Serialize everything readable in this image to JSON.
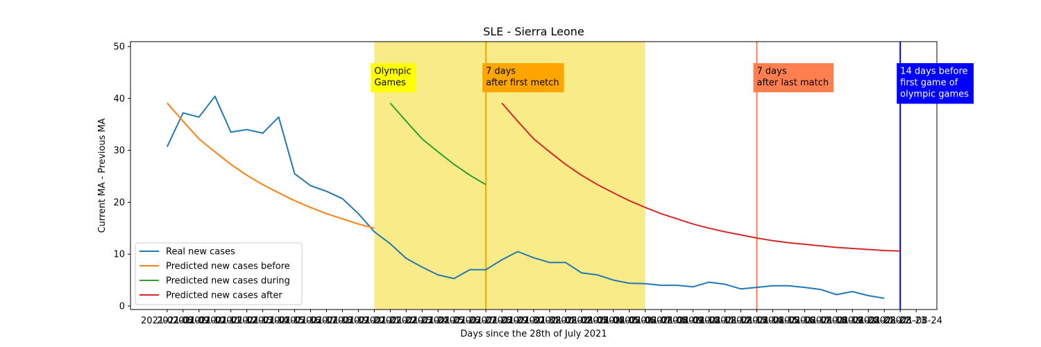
{
  "chart_data": {
    "type": "line",
    "title": "SLE - Sierra Leone",
    "xlabel": "Days since the 28th of July 2021",
    "ylabel": "Current MA - Previous MA",
    "ylim": [
      0,
      50
    ],
    "yticks": [
      0,
      10,
      20,
      30,
      40,
      50
    ],
    "xlim": [
      -2.3,
      48.3
    ],
    "x_tick_labels": [
      "2021-07-08",
      "2021-07-09",
      "2021-07-10",
      "2021-07-11",
      "2021-07-12",
      "2021-07-13",
      "2021-07-14",
      "2021-07-15",
      "2021-07-16",
      "2021-07-17",
      "2021-07-18",
      "2021-07-19",
      "2021-07-20",
      "2021-07-21",
      "2021-07-22",
      "2021-07-23",
      "2021-07-24",
      "2021-07-25",
      "2021-07-26",
      "2021-07-27",
      "2021-07-28",
      "2021-07-29",
      "2021-07-30",
      "2021-07-31",
      "2021-08-01",
      "2021-08-02",
      "2021-08-03",
      "2021-08-04",
      "2021-08-05",
      "2021-08-06",
      "2021-08-07",
      "2021-08-08",
      "2021-08-09",
      "2021-08-10",
      "2021-08-11",
      "2021-08-12",
      "2021-08-13",
      "2021-08-14",
      "2021-08-15",
      "2021-08-16",
      "2021-08-17",
      "2021-08-18",
      "2021-08-19",
      "2021-08-20",
      "2021-08-21",
      "2021-08-22",
      "2021-08-23",
      "2021-08-24"
    ],
    "series": [
      {
        "name": "Real new cases",
        "color": "#1f77b4",
        "x": [
          0,
          1,
          2,
          3,
          4,
          5,
          6,
          7,
          8,
          9,
          10,
          11,
          12,
          13,
          14,
          15,
          16,
          17,
          18,
          19,
          20,
          21,
          22,
          23,
          24,
          25,
          26,
          27,
          28,
          29,
          30,
          31,
          32,
          33,
          34,
          35,
          36,
          37,
          38,
          39,
          40,
          41,
          42,
          43,
          44,
          45,
          46
        ],
        "y": [
          30.7,
          37.2,
          36.4,
          40.4,
          33.5,
          34.0,
          33.3,
          36.4,
          25.5,
          23.2,
          22.1,
          20.7,
          17.8,
          14.3,
          12.0,
          9.2,
          7.5,
          6.0,
          5.3,
          7.0,
          7.0,
          8.9,
          10.5,
          9.3,
          8.4,
          8.4,
          6.4,
          6.0,
          5.0,
          4.4,
          4.3,
          4.0,
          4.0,
          3.7,
          4.6,
          4.2,
          3.3,
          3.6,
          3.9,
          3.9,
          3.6,
          3.2,
          2.2,
          2.8,
          2.0,
          1.5,
          null
        ]
      },
      {
        "name": "Predicted new cases before",
        "color": "#ff7f0e",
        "x": [
          0,
          1,
          2,
          3,
          4,
          5,
          6,
          7,
          8,
          9,
          10,
          11,
          12,
          13
        ],
        "y": [
          39.1,
          35.6,
          32.2,
          29.7,
          27.3,
          25.2,
          23.4,
          21.8,
          20.3,
          19.0,
          17.8,
          16.8,
          15.8,
          15.0
        ]
      },
      {
        "name": "Predicted new cases during",
        "color": "#2ca02c",
        "x": [
          14,
          15,
          16,
          17,
          18,
          19,
          20
        ],
        "y": [
          39.1,
          35.6,
          32.2,
          29.7,
          27.3,
          25.2,
          23.4
        ]
      },
      {
        "name": "Predicted new cases after",
        "color": "#d62728",
        "x": [
          21,
          22,
          23,
          24,
          25,
          26,
          27,
          28,
          29,
          30,
          31,
          32,
          33,
          34,
          35,
          36,
          37,
          38,
          39,
          40,
          41,
          42,
          43,
          44,
          45,
          46
        ],
        "y": [
          39.1,
          35.6,
          32.2,
          29.7,
          27.3,
          25.2,
          23.4,
          21.8,
          20.3,
          19.0,
          17.8,
          16.8,
          15.8,
          15.0,
          14.3,
          13.7,
          13.1,
          12.6,
          12.2,
          11.9,
          11.6,
          11.3,
          11.1,
          10.9,
          10.7,
          10.6
        ]
      }
    ],
    "spans": [
      {
        "x0": 13,
        "x1": 30,
        "color": "#f8e04a"
      }
    ],
    "vlines": [
      {
        "x": 20,
        "color": "#ffa500"
      },
      {
        "x": 37,
        "color": "#ff7f50"
      },
      {
        "x": 46,
        "color": "#0000ff"
      }
    ],
    "annotations": [
      {
        "lines": [
          "Olympic",
          "Games"
        ],
        "x": 13,
        "y": 46,
        "bg": "#ffff00",
        "fg": "#000000"
      },
      {
        "lines": [
          "7 days",
          "after first metch"
        ],
        "x": 20,
        "y": 46,
        "bg": "#ffa500",
        "fg": "#000000"
      },
      {
        "lines": [
          "7 days",
          "after last match"
        ],
        "x": 37,
        "y": 46,
        "bg": "#ff7f50",
        "fg": "#000000"
      },
      {
        "lines": [
          "14 days before",
          "first game of",
          "olympic games"
        ],
        "x": 46,
        "y": 46,
        "bg": "#0000ff",
        "fg": "#ffffff"
      }
    ],
    "legend": {
      "placement": "lower-left"
    },
    "grid": false
  }
}
